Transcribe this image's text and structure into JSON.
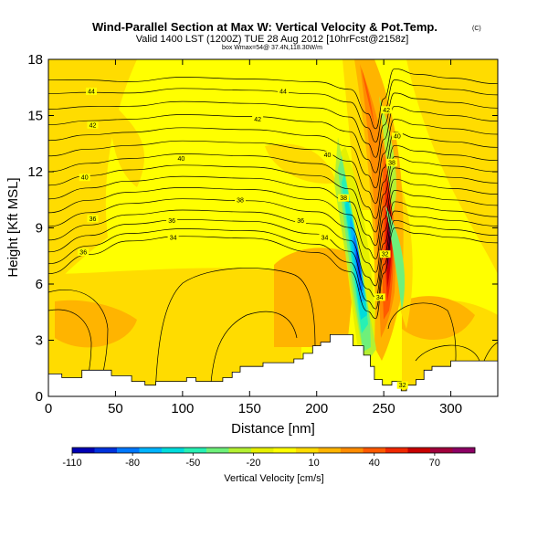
{
  "chart_data": {
    "type": "heatmap",
    "title": "Wind-Parallel Section at Max W: Vertical Velocity & Pot.Temp.",
    "title_mark": "(C)",
    "subtitle": "Valid 1400 LST (1200Z) TUE 28 Aug 2012 [10hrFcst@2158z]",
    "subtitle2": "box Wmax=54@ 37.4N,118.30W/m",
    "xlabel": "Distance [nm]",
    "ylabel": "Height [Kft MSL]",
    "xlim": [
      0,
      335
    ],
    "ylim": [
      0,
      18
    ],
    "x_ticks": [
      0,
      50,
      100,
      150,
      200,
      250,
      300
    ],
    "y_ticks": [
      0,
      3,
      6,
      9,
      12,
      15,
      18
    ],
    "colorbar": {
      "label": "Vertical Velocity [cm/s]",
      "ticks": [
        -110,
        -80,
        -50,
        -20,
        10,
        40,
        70
      ],
      "range": [
        -110,
        90
      ],
      "colors": [
        "#0000b4",
        "#0032dc",
        "#0078ff",
        "#00b4ff",
        "#00dcdc",
        "#28f0b4",
        "#6ef07a",
        "#b4f032",
        "#e6f000",
        "#ffff00",
        "#ffdc00",
        "#ffb400",
        "#ff8c00",
        "#ff5a00",
        "#f02800",
        "#c80000",
        "#a0003c",
        "#8c0064"
      ]
    },
    "contour_labels": [
      {
        "text": "44",
        "x": 32,
        "y": 16.3
      },
      {
        "text": "44",
        "x": 175,
        "y": 16.3
      },
      {
        "text": "42",
        "x": 33,
        "y": 14.5
      },
      {
        "text": "42",
        "x": 156,
        "y": 14.8
      },
      {
        "text": "42",
        "x": 252,
        "y": 15.3
      },
      {
        "text": "40",
        "x": 27,
        "y": 11.7
      },
      {
        "text": "40",
        "x": 99,
        "y": 12.7
      },
      {
        "text": "40",
        "x": 208,
        "y": 12.9
      },
      {
        "text": "40",
        "x": 260,
        "y": 13.9
      },
      {
        "text": "38",
        "x": 143,
        "y": 10.5
      },
      {
        "text": "38",
        "x": 220,
        "y": 10.6
      },
      {
        "text": "38",
        "x": 256,
        "y": 12.5
      },
      {
        "text": "36",
        "x": 33,
        "y": 9.5
      },
      {
        "text": "36",
        "x": 92,
        "y": 9.4
      },
      {
        "text": "36",
        "x": 188,
        "y": 9.4
      },
      {
        "text": "36",
        "x": 26,
        "y": 7.7
      },
      {
        "text": "34",
        "x": 93,
        "y": 8.5
      },
      {
        "text": "34",
        "x": 206,
        "y": 8.5
      },
      {
        "text": "32",
        "x": 251,
        "y": 7.6
      },
      {
        "text": "34",
        "x": 247,
        "y": 5.3
      },
      {
        "text": "32",
        "x": 264,
        "y": 0.6
      }
    ],
    "terrain": [
      [
        0,
        1.2
      ],
      [
        10,
        1.2
      ],
      [
        10,
        1.0
      ],
      [
        25,
        1.0
      ],
      [
        25,
        1.4
      ],
      [
        47,
        1.4
      ],
      [
        47,
        1.1
      ],
      [
        62,
        1.1
      ],
      [
        62,
        0.8
      ],
      [
        72,
        0.8
      ],
      [
        72,
        0.6
      ],
      [
        80,
        0.6
      ],
      [
        80,
        0.8
      ],
      [
        103,
        0.8
      ],
      [
        103,
        1.0
      ],
      [
        110,
        1.0
      ],
      [
        110,
        0.8
      ],
      [
        130,
        0.8
      ],
      [
        130,
        1.0
      ],
      [
        137,
        1.0
      ],
      [
        137,
        1.3
      ],
      [
        143,
        1.3
      ],
      [
        143,
        1.6
      ],
      [
        160,
        1.6
      ],
      [
        160,
        1.8
      ],
      [
        183,
        1.8
      ],
      [
        183,
        2.0
      ],
      [
        190,
        2.0
      ],
      [
        190,
        2.3
      ],
      [
        197,
        2.3
      ],
      [
        197,
        2.7
      ],
      [
        203,
        2.7
      ],
      [
        203,
        2.9
      ],
      [
        210,
        2.9
      ],
      [
        210,
        3.3
      ],
      [
        227,
        3.3
      ],
      [
        227,
        2.7
      ],
      [
        235,
        2.7
      ],
      [
        235,
        2.2
      ],
      [
        240,
        2.2
      ],
      [
        240,
        1.6
      ],
      [
        243,
        1.6
      ],
      [
        243,
        0.9
      ],
      [
        249,
        0.9
      ],
      [
        249,
        0.6
      ],
      [
        256,
        0.6
      ],
      [
        256,
        0.8
      ],
      [
        263,
        0.8
      ],
      [
        263,
        0.3
      ],
      [
        267,
        0.3
      ],
      [
        267,
        0.6
      ],
      [
        274,
        0.6
      ],
      [
        274,
        0.9
      ],
      [
        280,
        0.9
      ],
      [
        280,
        1.4
      ],
      [
        286,
        1.4
      ],
      [
        286,
        1.6
      ],
      [
        300,
        1.6
      ],
      [
        300,
        1.9
      ],
      [
        335,
        1.9
      ]
    ]
  }
}
